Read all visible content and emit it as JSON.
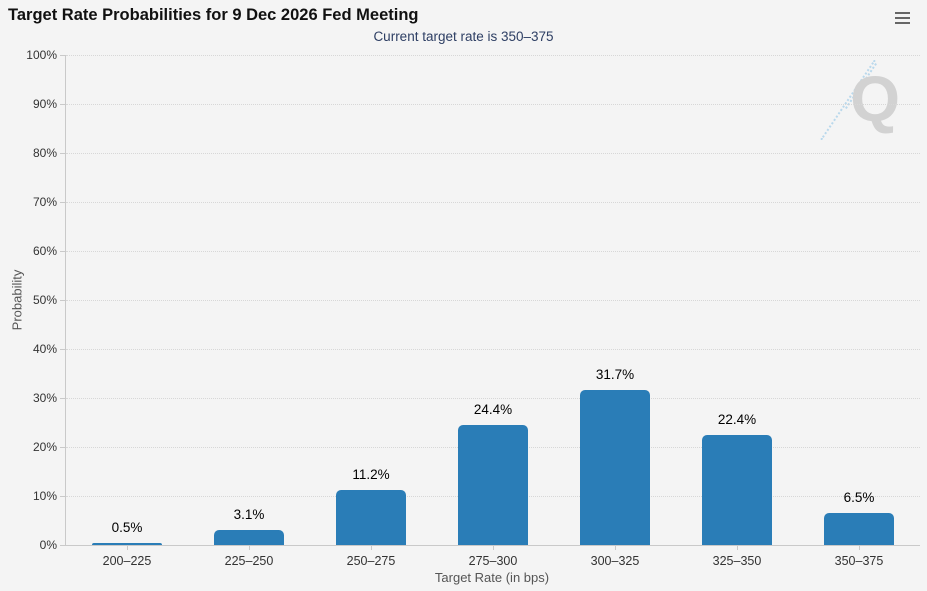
{
  "header": {
    "menu_icon": "hamburger-icon"
  },
  "watermark": {
    "letter": "Q"
  },
  "colors": {
    "background": "#f4f4f4",
    "bar": "#2a7db7",
    "subtitle_text": "#2d3e63",
    "grid": "#d7d7d7",
    "axis": "#c9c9c9"
  },
  "chart_data": {
    "type": "bar",
    "title": "Target Rate Probabilities for 9 Dec 2026 Fed Meeting",
    "subtitle": "Current target rate is 350–375",
    "categories": [
      "200–225",
      "225–250",
      "250–275",
      "275–300",
      "300–325",
      "325–350",
      "350–375"
    ],
    "values": [
      0.5,
      3.1,
      11.2,
      24.4,
      31.7,
      22.4,
      6.5
    ],
    "data_labels": [
      "0.5%",
      "3.1%",
      "11.2%",
      "24.4%",
      "31.7%",
      "22.4%",
      "6.5%"
    ],
    "xlabel": "Target Rate (in bps)",
    "ylabel": "Probability",
    "ylim": [
      0,
      100
    ],
    "ytick_step": 10,
    "ytick_suffix": "%",
    "grid": "horizontal dotted",
    "legend": "none",
    "bar_color": "#2a7db7"
  }
}
